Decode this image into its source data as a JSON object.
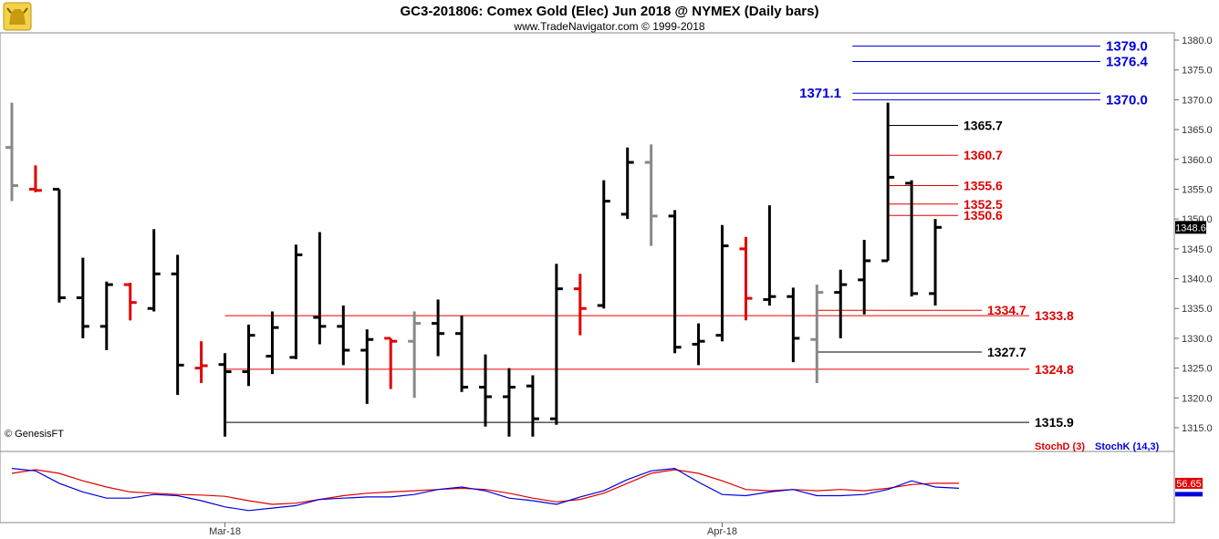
{
  "header": {
    "title": "GC3-201806:  Comex Gold (Elec) Jun 2018 @ NYMEX  (Daily bars)",
    "subtitle": "www.TradeNavigator.com © 1999-2018",
    "copyright": "© GenesisFT"
  },
  "chart_data": {
    "type": "ohlc",
    "ylim": [
      1311,
      1382
    ],
    "y_ticks": [
      "1380.0",
      "1375.0",
      "1370.0",
      "1365.0",
      "1360.0",
      "1355.0",
      "1350.0",
      "1345.0",
      "1340.0",
      "1335.0",
      "1330.0",
      "1325.0",
      "1320.0",
      "1315.0"
    ],
    "x_labels": [
      {
        "label": "Mar-18",
        "bar": 9
      },
      {
        "label": "Apr-18",
        "bar": 30
      }
    ],
    "last_price": "1348.6",
    "bars": [
      {
        "o": 1362.0,
        "h": 1369.5,
        "l": 1353.0,
        "c": 1355.6,
        "color": "#888888"
      },
      {
        "o": 1355.0,
        "h": 1359.0,
        "l": 1354.5,
        "c": 1354.8,
        "color": "#e00000"
      },
      {
        "o": 1355.0,
        "h": 1355.0,
        "l": 1336.0,
        "c": 1336.8,
        "color": "#000000"
      },
      {
        "o": 1336.8,
        "h": 1343.5,
        "l": 1330.0,
        "c": 1332.0,
        "color": "#000000"
      },
      {
        "o": 1332.0,
        "h": 1339.5,
        "l": 1328.0,
        "c": 1339.0,
        "color": "#000000"
      },
      {
        "o": 1339.0,
        "h": 1339.3,
        "l": 1333.0,
        "c": 1336.0,
        "color": "#e00000"
      },
      {
        "o": 1335.0,
        "h": 1348.3,
        "l": 1334.5,
        "c": 1340.8,
        "color": "#000000"
      },
      {
        "o": 1340.8,
        "h": 1344.0,
        "l": 1320.5,
        "c": 1325.5,
        "color": "#000000"
      },
      {
        "o": 1325.0,
        "h": 1329.5,
        "l": 1322.5,
        "c": 1325.4,
        "color": "#e00000"
      },
      {
        "o": 1325.6,
        "h": 1327.5,
        "l": 1313.5,
        "c": 1324.4,
        "color": "#000000"
      },
      {
        "o": 1324.4,
        "h": 1332.3,
        "l": 1322.0,
        "c": 1330.5,
        "color": "#000000"
      },
      {
        "o": 1327.0,
        "h": 1334.5,
        "l": 1324.0,
        "c": 1331.8,
        "color": "#000000"
      },
      {
        "o": 1326.8,
        "h": 1345.7,
        "l": 1326.5,
        "c": 1344.0,
        "color": "#000000"
      },
      {
        "o": 1333.5,
        "h": 1347.8,
        "l": 1329.0,
        "c": 1332.0,
        "color": "#000000"
      },
      {
        "o": 1332.0,
        "h": 1335.5,
        "l": 1325.5,
        "c": 1328.0,
        "color": "#000000"
      },
      {
        "o": 1328.0,
        "h": 1331.5,
        "l": 1319.0,
        "c": 1329.8,
        "color": "#000000"
      },
      {
        "o": 1330.0,
        "h": 1330.0,
        "l": 1321.5,
        "c": 1329.5,
        "color": "#e00000"
      },
      {
        "o": 1329.5,
        "h": 1334.5,
        "l": 1320.0,
        "c": 1332.5,
        "color": "#888888"
      },
      {
        "o": 1332.5,
        "h": 1336.5,
        "l": 1327.0,
        "c": 1330.8,
        "color": "#000000"
      },
      {
        "o": 1330.8,
        "h": 1333.8,
        "l": 1321.0,
        "c": 1321.8,
        "color": "#000000"
      },
      {
        "o": 1321.8,
        "h": 1327.3,
        "l": 1315.2,
        "c": 1320.2,
        "color": "#000000"
      },
      {
        "o": 1320.2,
        "h": 1325.0,
        "l": 1313.5,
        "c": 1321.8,
        "color": "#000000"
      },
      {
        "o": 1322.0,
        "h": 1323.8,
        "l": 1313.5,
        "c": 1316.5,
        "color": "#000000"
      },
      {
        "o": 1316.5,
        "h": 1342.5,
        "l": 1315.5,
        "c": 1338.3,
        "color": "#000000"
      },
      {
        "o": 1338.3,
        "h": 1340.8,
        "l": 1330.5,
        "c": 1335.0,
        "color": "#e00000"
      },
      {
        "o": 1335.5,
        "h": 1356.5,
        "l": 1335.0,
        "c": 1353.0,
        "color": "#000000"
      },
      {
        "o": 1350.8,
        "h": 1362.0,
        "l": 1350.0,
        "c": 1359.5,
        "color": "#000000"
      },
      {
        "o": 1359.5,
        "h": 1362.5,
        "l": 1345.5,
        "c": 1350.5,
        "color": "#888888"
      },
      {
        "o": 1350.5,
        "h": 1351.5,
        "l": 1327.5,
        "c": 1328.5,
        "color": "#000000"
      },
      {
        "o": 1329.0,
        "h": 1332.5,
        "l": 1325.5,
        "c": 1329.5,
        "color": "#000000"
      },
      {
        "o": 1330.5,
        "h": 1349.0,
        "l": 1329.5,
        "c": 1345.5,
        "color": "#000000"
      },
      {
        "o": 1345.0,
        "h": 1347.0,
        "l": 1333.0,
        "c": 1336.7,
        "color": "#e00000"
      },
      {
        "o": 1336.5,
        "h": 1352.3,
        "l": 1335.5,
        "c": 1337.0,
        "color": "#000000"
      },
      {
        "o": 1337.0,
        "h": 1338.5,
        "l": 1326.0,
        "c": 1330.0,
        "color": "#000000"
      },
      {
        "o": 1329.8,
        "h": 1339.0,
        "l": 1322.5,
        "c": 1337.7,
        "color": "#888888"
      },
      {
        "o": 1337.7,
        "h": 1341.5,
        "l": 1330.0,
        "c": 1339.0,
        "color": "#000000"
      },
      {
        "o": 1339.8,
        "h": 1346.5,
        "l": 1334.0,
        "c": 1343.0,
        "color": "#000000"
      },
      {
        "o": 1343.0,
        "h": 1369.5,
        "l": 1343.0,
        "c": 1357.0,
        "color": "#000000"
      },
      {
        "o": 1356.0,
        "h": 1356.5,
        "l": 1337.0,
        "c": 1337.5,
        "color": "#000000"
      },
      {
        "o": 1337.5,
        "h": 1350.0,
        "l": 1335.5,
        "c": 1348.6,
        "color": "#000000"
      }
    ],
    "levels": [
      {
        "value": 1379.0,
        "label": "1379.0",
        "color": "#0000dd",
        "from_bar": 35.5,
        "label_side": "right"
      },
      {
        "value": 1376.4,
        "label": "1376.4",
        "color": "#0000dd",
        "from_bar": 35.5,
        "label_side": "right"
      },
      {
        "value": 1371.1,
        "label": "1371.1",
        "color": "#0000dd",
        "from_bar": 35.5,
        "label_side": "left"
      },
      {
        "value": 1370.0,
        "label": "1370.0",
        "color": "#0000dd",
        "from_bar": 35.5,
        "label_side": "right"
      },
      {
        "value": 1365.7,
        "label": "1365.7",
        "color": "#000000",
        "from_bar": 37,
        "label_side": "mid"
      },
      {
        "value": 1360.7,
        "label": "1360.7",
        "color": "#e00000",
        "from_bar": 37,
        "label_side": "mid"
      },
      {
        "value": 1355.6,
        "label": "1355.6",
        "color": "#e00000",
        "from_bar": 37,
        "label_side": "mid"
      },
      {
        "value": 1352.5,
        "label": "1352.5",
        "color": "#e00000",
        "from_bar": 37,
        "label_side": "mid"
      },
      {
        "value": 1350.6,
        "label": "1350.6",
        "color": "#e00000",
        "from_bar": 37,
        "label_side": "mid"
      },
      {
        "value": 1334.7,
        "label": "1334.7",
        "color": "#e00000",
        "from_bar": 34,
        "label_side": "mid2"
      },
      {
        "value": 1333.8,
        "label": "1333.8",
        "color": "#e00000",
        "from_bar": 9,
        "label_side": "end"
      },
      {
        "value": 1327.7,
        "label": "1327.7",
        "color": "#000000",
        "from_bar": 34,
        "label_side": "mid2"
      },
      {
        "value": 1324.8,
        "label": "1324.8",
        "color": "#e00000",
        "from_bar": 9,
        "label_side": "end"
      },
      {
        "value": 1315.9,
        "label": "1315.9",
        "color": "#000000",
        "from_bar": 9,
        "label_side": "end"
      }
    ],
    "stoch": {
      "ylim": [
        0,
        100
      ],
      "last_value": "56.65",
      "series": [
        {
          "name": "StochD (3)",
          "color": "#e00000",
          "values": [
            72,
            78,
            72,
            60,
            50,
            42,
            40,
            38,
            37,
            35,
            28,
            22,
            24,
            30,
            36,
            40,
            42,
            44,
            46,
            48,
            46,
            40,
            32,
            26,
            30,
            40,
            56,
            72,
            78,
            72,
            60,
            46,
            44,
            46,
            44,
            46,
            44,
            48,
            54,
            56,
            56
          ]
        },
        {
          "name": "StochK (14,3)",
          "color": "#0000dd",
          "values": [
            80,
            76,
            56,
            42,
            32,
            32,
            38,
            36,
            28,
            18,
            12,
            16,
            20,
            30,
            32,
            34,
            34,
            38,
            46,
            50,
            44,
            32,
            28,
            22,
            34,
            44,
            62,
            76,
            80,
            58,
            38,
            36,
            42,
            46,
            36,
            36,
            38,
            46,
            60,
            50,
            48
          ]
        }
      ]
    }
  }
}
